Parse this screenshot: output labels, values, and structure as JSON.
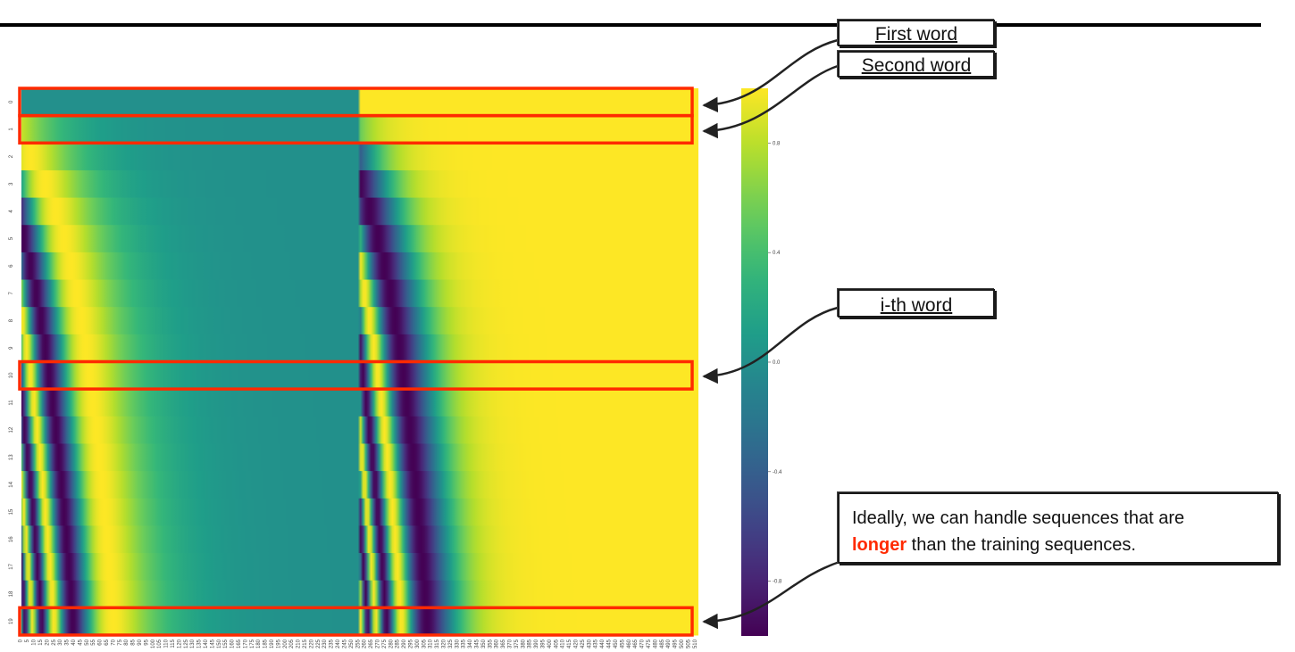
{
  "callouts": {
    "first_word": "First word",
    "second_word": "Second word",
    "ith_word": "i-th word",
    "note_line1": "Ideally, we can handle sequences that are",
    "note_highlight": "longer",
    "note_line2_rest": " than the training sequences."
  },
  "colors": {
    "highlight_box": "#ff2a00",
    "arrow": "#222222",
    "viridis_low": "#440154",
    "viridis_mid": "#21918c",
    "viridis_high": "#fde725"
  },
  "chart_data": {
    "type": "heatmap",
    "colormap": "viridis",
    "rows": [
      "0",
      "1",
      "2",
      "3",
      "4",
      "5",
      "6",
      "7",
      "8",
      "9",
      "10",
      "11",
      "12",
      "13",
      "14",
      "15",
      "16",
      "17",
      "18",
      "19"
    ],
    "columns_count": 512,
    "x_tick_step": 5,
    "x_tick_max": 510,
    "value_range": [
      -1,
      1
    ],
    "colorbar_ticks": [
      "0.8",
      "0.4",
      "0.0",
      "-0.4",
      "-0.8"
    ],
    "colorbar_tick_values": [
      0.8,
      0.4,
      0.0,
      -0.4,
      -0.8
    ],
    "highlighted_rows": [
      0,
      1,
      10,
      19
    ],
    "legend": "colorbar at right"
  }
}
